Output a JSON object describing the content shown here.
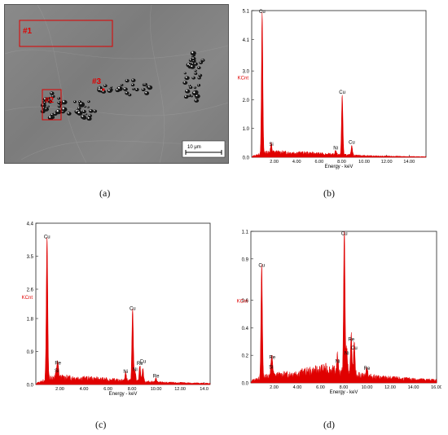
{
  "micrograph": {
    "regions": [
      "#1",
      "#2",
      "#3"
    ],
    "scale_bar": "10 μm"
  },
  "captions": [
    "(a)",
    "(b)",
    "(c)",
    "(d)"
  ],
  "colors": {
    "spectrum": "#e00000",
    "region": "#e00000",
    "text": "#000000"
  },
  "chart_data": [
    {
      "type": "line",
      "panel": "b",
      "xlabel": "Energy - keV",
      "ylabel": "KCnt",
      "xlim": [
        0,
        15.5
      ],
      "ylim": [
        0,
        5.1
      ],
      "x_ticks": [
        2.0,
        4.0,
        6.0,
        8.0,
        10.0,
        12.0,
        14.0
      ],
      "x_tick_labels": [
        "2.00",
        "4.00",
        "6.00",
        "8.00",
        "10.00",
        "12.00",
        "14.00"
      ],
      "y_ticks": [
        0.0,
        1.0,
        2.0,
        3.0,
        4.1,
        5.1
      ],
      "y_tick_labels": [
        "0.0",
        "1.0",
        "2.0",
        "3.0",
        "4.1",
        "5.1"
      ],
      "baseline": [
        [
          0.2,
          0.05
        ],
        [
          1.5,
          0.18
        ],
        [
          3.0,
          0.16
        ],
        [
          5.0,
          0.14
        ],
        [
          7.0,
          0.1
        ],
        [
          9.0,
          0.07
        ],
        [
          11.0,
          0.04
        ],
        [
          13.0,
          0.03
        ],
        [
          15.0,
          0.02
        ]
      ],
      "peaks": [
        {
          "x": 0.93,
          "y": 4.9,
          "label": "Cu"
        },
        {
          "x": 1.74,
          "y": 0.28,
          "label": "Si"
        },
        {
          "x": 7.47,
          "y": 0.16,
          "label": "Ni"
        },
        {
          "x": 8.05,
          "y": 2.1,
          "label": "Cu"
        },
        {
          "x": 8.9,
          "y": 0.35,
          "label": "Cu"
        }
      ]
    },
    {
      "type": "line",
      "panel": "c",
      "xlabel": "Energy - keV",
      "ylabel": "KCnt",
      "xlim": [
        0,
        14.5
      ],
      "ylim": [
        0,
        4.4
      ],
      "x_ticks": [
        2.0,
        4.0,
        6.0,
        8.0,
        10.0,
        12.0,
        14.0
      ],
      "x_tick_labels": [
        "2.00",
        "4.00",
        "6.00",
        "8.00",
        "10.00",
        "12.00",
        "14.0"
      ],
      "y_ticks": [
        0.0,
        0.9,
        1.8,
        2.6,
        3.5,
        4.4
      ],
      "y_tick_labels": [
        "0.0",
        "0.9",
        "1.8",
        "2.6",
        "3.5",
        "4.4"
      ],
      "baseline": [
        [
          0.2,
          0.05
        ],
        [
          1.5,
          0.2
        ],
        [
          3.0,
          0.18
        ],
        [
          5.0,
          0.15
        ],
        [
          7.0,
          0.11
        ],
        [
          9.0,
          0.08
        ],
        [
          11.0,
          0.05
        ],
        [
          13.0,
          0.04
        ],
        [
          14.4,
          0.03
        ]
      ],
      "peaks": [
        {
          "x": 0.93,
          "y": 3.9,
          "label": "Cu"
        },
        {
          "x": 1.74,
          "y": 0.25,
          "label": "Si"
        },
        {
          "x": 1.84,
          "y": 0.3,
          "label": "Re"
        },
        {
          "x": 7.47,
          "y": 0.22,
          "label": "Ni"
        },
        {
          "x": 8.05,
          "y": 1.95,
          "label": "Cu"
        },
        {
          "x": 8.65,
          "y": 0.45,
          "label": "Re"
        },
        {
          "x": 8.9,
          "y": 0.35,
          "label": "Cu"
        },
        {
          "x": 8.26,
          "y": 0.28,
          "label": "Ni"
        },
        {
          "x": 10.0,
          "y": 0.1,
          "label": "Re"
        }
      ]
    },
    {
      "type": "line",
      "panel": "d",
      "xlabel": "Energy - keV",
      "ylabel": "KCnt",
      "xlim": [
        0,
        16.0
      ],
      "ylim": [
        0,
        1.1
      ],
      "x_ticks": [
        2.0,
        4.0,
        6.0,
        8.0,
        10.0,
        12.0,
        14.0,
        16.0
      ],
      "x_tick_labels": [
        "2.00",
        "4.00",
        "6.00",
        "8.00",
        "10.00",
        "12.00",
        "14.00",
        "16.00"
      ],
      "y_ticks": [
        0.0,
        0.2,
        0.4,
        0.6,
        0.9,
        1.1
      ],
      "y_tick_labels": [
        "0.0",
        "0.2",
        "0.4",
        "0.6",
        "0.9",
        "1.1"
      ],
      "baseline": [
        [
          0.2,
          0.02
        ],
        [
          1.5,
          0.05
        ],
        [
          3.0,
          0.06
        ],
        [
          5.0,
          0.08
        ],
        [
          6.5,
          0.1
        ],
        [
          7.5,
          0.08
        ],
        [
          9.0,
          0.06
        ],
        [
          11.0,
          0.04
        ],
        [
          13.0,
          0.03
        ],
        [
          15.9,
          0.02
        ]
      ],
      "peaks": [
        {
          "x": 0.93,
          "y": 0.82,
          "label": "Cu"
        },
        {
          "x": 1.74,
          "y": 0.08,
          "label": "Si"
        },
        {
          "x": 1.84,
          "y": 0.11,
          "label": "Re"
        },
        {
          "x": 7.47,
          "y": 0.12,
          "label": "Ni"
        },
        {
          "x": 8.05,
          "y": 1.05,
          "label": "Cu"
        },
        {
          "x": 8.26,
          "y": 0.18,
          "label": "Ni"
        },
        {
          "x": 8.65,
          "y": 0.28,
          "label": "Re"
        },
        {
          "x": 8.9,
          "y": 0.22,
          "label": "Cu"
        },
        {
          "x": 10.0,
          "y": 0.07,
          "label": "Re"
        }
      ]
    }
  ]
}
